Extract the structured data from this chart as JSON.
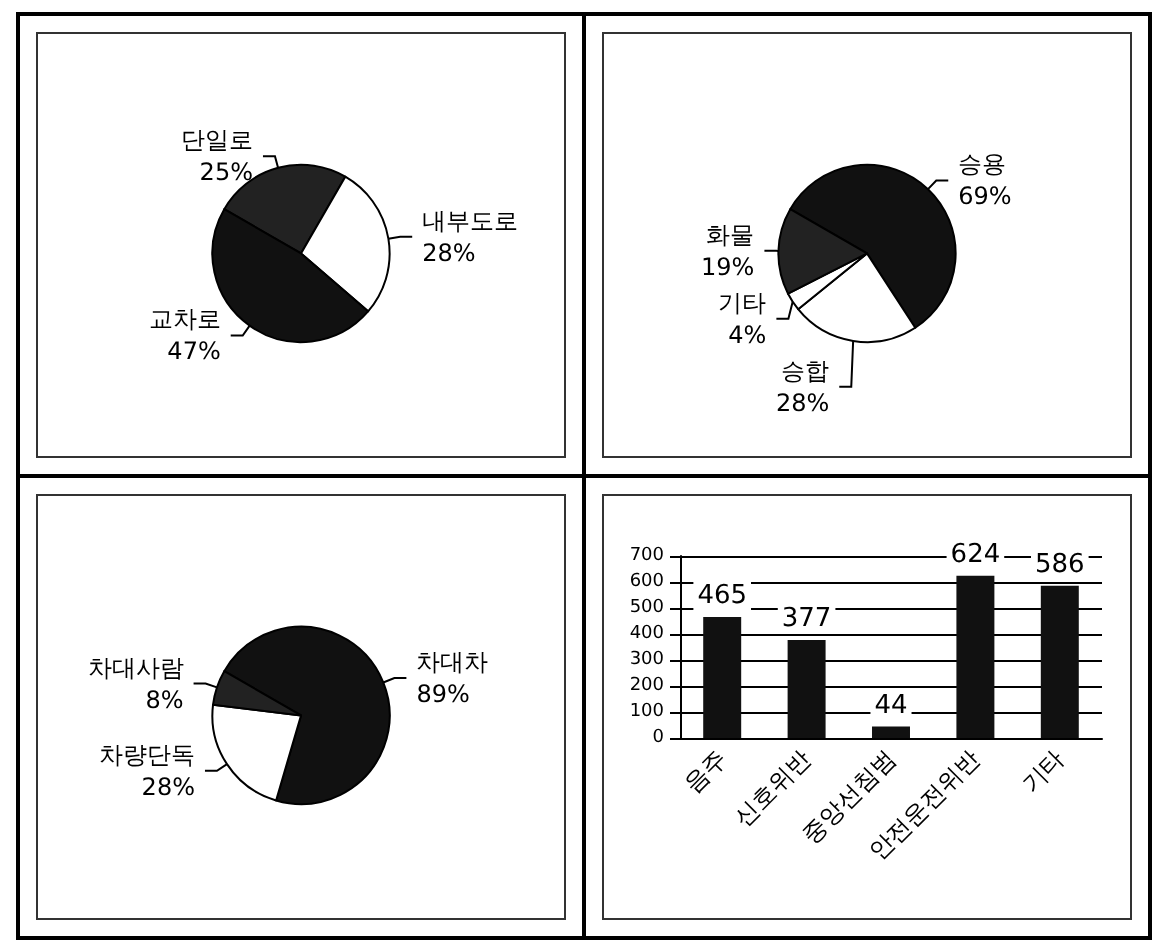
{
  "chart_data": [
    {
      "type": "pie",
      "categories": [
        "단일로",
        "내부도로",
        "교차로"
      ],
      "values": [
        25,
        28,
        47
      ],
      "value_labels": [
        "25%",
        "28%",
        "47%"
      ],
      "colors": [
        "#222222",
        "#ffffff",
        "#111111"
      ]
    },
    {
      "type": "pie",
      "categories": [
        "승용",
        "승합",
        "기타",
        "화물"
      ],
      "values": [
        69,
        28,
        4,
        19
      ],
      "value_labels": [
        "69%",
        "28%",
        "4%",
        "19%"
      ],
      "colors": [
        "#111111",
        "#ffffff",
        "#ffffff",
        "#222222"
      ]
    },
    {
      "type": "pie",
      "categories": [
        "차대차",
        "차량단독",
        "차대사람"
      ],
      "values": [
        89,
        28,
        8
      ],
      "value_labels": [
        "89%",
        "28%",
        "8%"
      ],
      "colors": [
        "#111111",
        "#ffffff",
        "#222222"
      ]
    },
    {
      "type": "bar",
      "categories": [
        "음주",
        "신호위반",
        "중앙선침범",
        "안전운전위반",
        "기타"
      ],
      "values": [
        465,
        377,
        44,
        624,
        586
      ],
      "color": "#111111",
      "ylim": [
        0,
        700
      ],
      "yticks": [
        0,
        100,
        200,
        300,
        400,
        500,
        600,
        700
      ],
      "grid": "y",
      "data_labels": true
    }
  ]
}
